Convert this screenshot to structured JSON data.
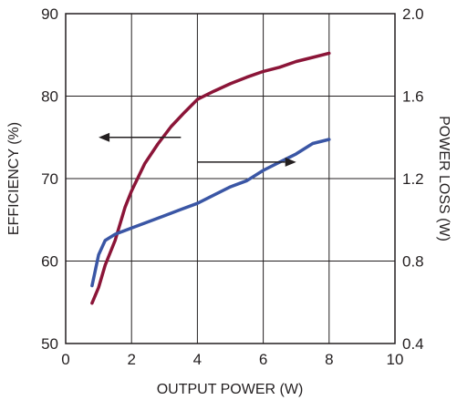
{
  "chart_data": {
    "type": "line",
    "title": "",
    "xlabel": "OUTPUT POWER (W)",
    "ylabel_left": "EFFICIENCY (%)",
    "ylabel_right": "POWER LOSS (W)",
    "xlim": [
      0,
      10
    ],
    "ylim_left": [
      50,
      90
    ],
    "ylim_right": [
      0.4,
      2.0
    ],
    "grid": true,
    "x_ticks": [
      "0",
      "2",
      "4",
      "6",
      "8",
      "10"
    ],
    "y_ticks_left": [
      "50",
      "60",
      "70",
      "80",
      "90"
    ],
    "y_ticks_right": [
      "0.4",
      "0.8",
      "1.2",
      "1.6",
      "2.0"
    ],
    "series": [
      {
        "axis": "left",
        "color": "#8b1538",
        "x": [
          0.8,
          1.0,
          1.2,
          1.5,
          1.8,
          2.0,
          2.4,
          2.8,
          3.2,
          3.6,
          4.0,
          4.5,
          5.0,
          5.5,
          6.0,
          6.5,
          7.0,
          7.5,
          8.0
        ],
        "y": [
          54.9,
          56.8,
          59.5,
          62.5,
          66.5,
          68.5,
          71.8,
          74.2,
          76.3,
          78.0,
          79.6,
          80.6,
          81.5,
          82.3,
          83.0,
          83.5,
          84.2,
          84.7,
          85.2
        ]
      },
      {
        "axis": "right",
        "color": "#3a56a5",
        "x": [
          0.8,
          1.0,
          1.2,
          1.5,
          2.0,
          2.5,
          3.0,
          3.5,
          4.0,
          4.5,
          5.0,
          5.5,
          6.0,
          6.5,
          7.0,
          7.5,
          8.0
        ],
        "y": [
          0.68,
          0.83,
          0.9,
          0.93,
          0.96,
          0.99,
          1.02,
          1.05,
          1.08,
          1.12,
          1.16,
          1.19,
          1.24,
          1.28,
          1.32,
          1.37,
          1.39
        ]
      }
    ],
    "annotations": [
      {
        "type": "arrow",
        "points_to": "left-axis",
        "series": 0
      },
      {
        "type": "arrow",
        "points_to": "right-axis",
        "series": 1
      }
    ]
  }
}
